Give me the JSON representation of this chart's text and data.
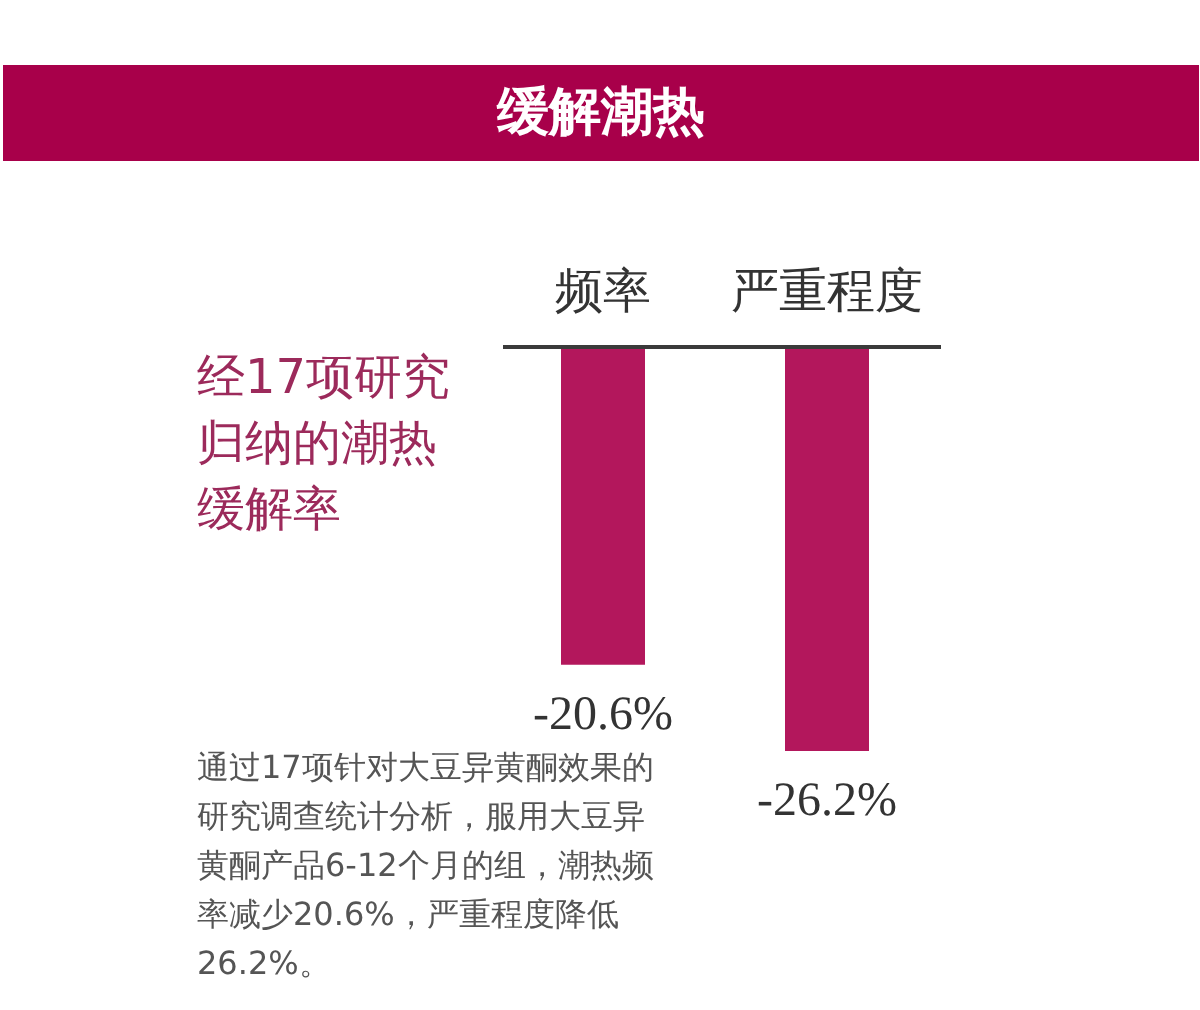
{
  "chart_data": {
    "type": "bar",
    "title": "缓解潮热",
    "subtitle": "经17项研究归纳的潮热缓解率",
    "annotations": [
      "通过17项针对大豆异黄酮效果的研究调查统计分析，服用大豆异黄酮产品6-12个月的组，潮热频率减少20.6%，严重程度降低26.2%。"
    ],
    "categories": [
      "频率",
      "严重程度"
    ],
    "values": [
      -20.6,
      -26.2
    ],
    "color": "#b3175c",
    "value_labels": [
      "-20.6%",
      "-26.2%"
    ],
    "tick_labels": "x"
  }
}
